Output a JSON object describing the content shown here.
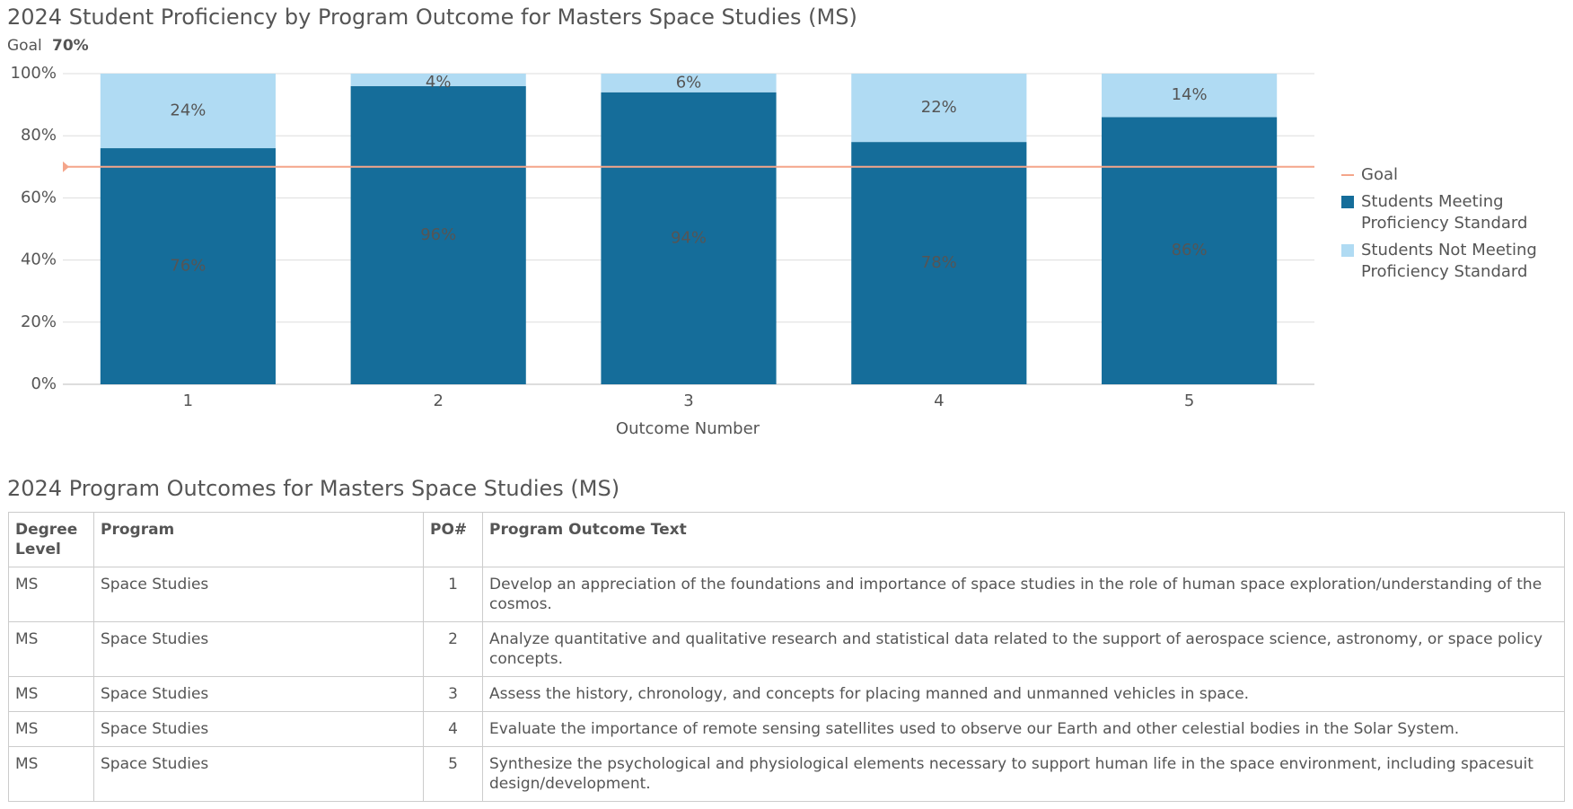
{
  "chart_data": {
    "type": "stacked_bar",
    "title": "2024 Student Proficiency by Program Outcome for Masters Space Studies (MS)",
    "x_label": "Outcome Number",
    "categories": [
      "1",
      "2",
      "3",
      "4",
      "5"
    ],
    "series": [
      {
        "name": "Students Meeting Proficiency Standard",
        "color": "#156d9a",
        "values": [
          76,
          96,
          94,
          78,
          86
        ],
        "value_labels": [
          "76%",
          "96%",
          "94%",
          "78%",
          "86%"
        ],
        "label_color": "#ffffff"
      },
      {
        "name": "Students Not Meeting Proficiency Standard",
        "color": "#b0dbf3",
        "values": [
          24,
          4,
          6,
          22,
          14
        ],
        "value_labels": [
          "24%",
          "4%",
          "6%",
          "22%",
          "14%"
        ],
        "label_color": "#1a5f87"
      }
    ],
    "goal": {
      "name": "Goal",
      "value": 70,
      "label": "70%",
      "color": "#f4a58a"
    },
    "ylim": [
      0,
      100
    ],
    "yticks": [
      {
        "value": 0,
        "label": "0%"
      },
      {
        "value": 20,
        "label": "20%"
      },
      {
        "value": 40,
        "label": "40%"
      },
      {
        "value": 60,
        "label": "60%"
      },
      {
        "value": 80,
        "label": "80%"
      },
      {
        "value": 100,
        "label": "100%"
      }
    ],
    "grid": true
  },
  "table": {
    "title": "2024 Program Outcomes for Masters Space Studies (MS)",
    "headers": [
      "Degree Level",
      "Program",
      "PO#",
      "Program Outcome Text"
    ],
    "rows": [
      [
        "MS",
        "Space Studies",
        1,
        "Develop an appreciation of the foundations and importance of space studies in the role of human space exploration/understanding of the cosmos."
      ],
      [
        "MS",
        "Space Studies",
        2,
        "Analyze quantitative and qualitative research and statistical data related to the support of aerospace science, astronomy, or space policy concepts."
      ],
      [
        "MS",
        "Space Studies",
        3,
        "Assess the history, chronology, and concepts for placing manned and unmanned vehicles in space."
      ],
      [
        "MS",
        "Space Studies",
        4,
        "Evaluate the importance of remote sensing satellites used to observe our Earth and other celestial bodies in the Solar System."
      ],
      [
        "MS",
        "Space Studies",
        5,
        "Synthesize the psychological and physiological elements necessary to support human life in the space environment, including spacesuit design/development."
      ]
    ]
  }
}
